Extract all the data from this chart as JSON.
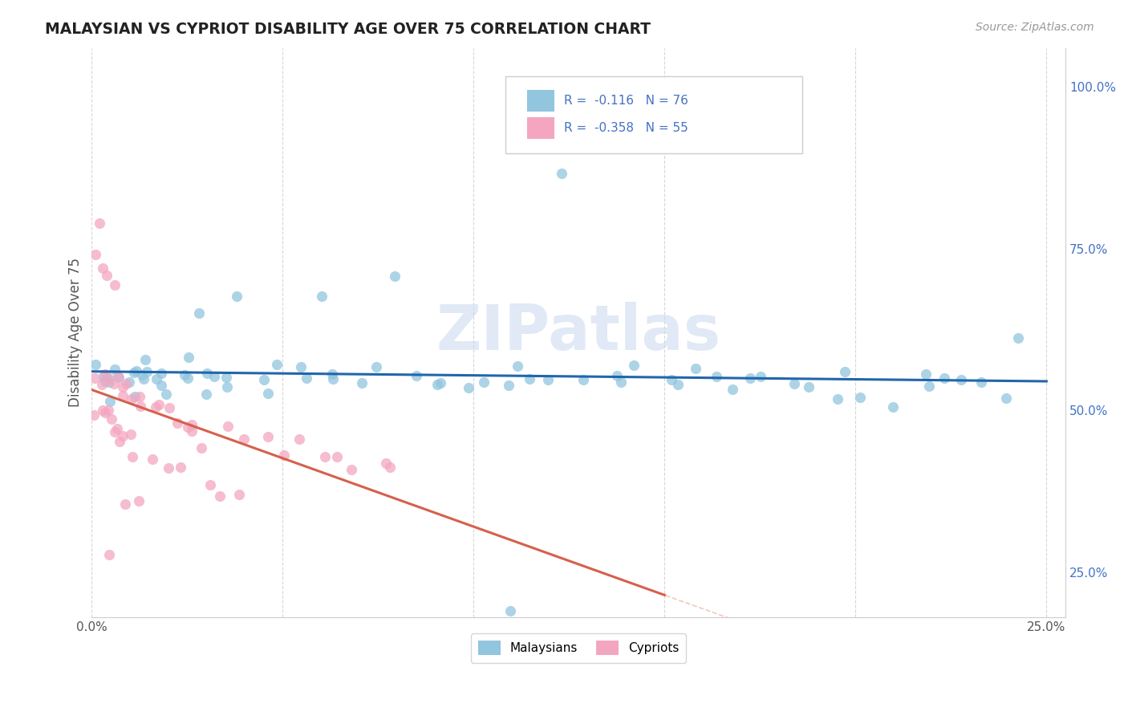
{
  "title": "MALAYSIAN VS CYPRIOT DISABILITY AGE OVER 75 CORRELATION CHART",
  "source": "Source: ZipAtlas.com",
  "ylabel": "Disability Age Over 75",
  "xlim": [
    0.0,
    0.255
  ],
  "ylim": [
    0.18,
    1.06
  ],
  "r_malaysian": -0.116,
  "n_malaysian": 76,
  "r_cypriot": -0.358,
  "n_cypriot": 55,
  "blue_color": "#92c5de",
  "pink_color": "#f4a6c0",
  "blue_line_color": "#2166ac",
  "pink_line_color": "#d6604d",
  "watermark": "ZIPatlas",
  "legend_labels": [
    "Malaysians",
    "Cypriots"
  ],
  "grid_color": "#cccccc",
  "right_tick_color": "#4472c4",
  "malaysian_x": [
    0.001,
    0.002,
    0.003,
    0.004,
    0.005,
    0.006,
    0.007,
    0.008,
    0.009,
    0.01,
    0.011,
    0.012,
    0.013,
    0.014,
    0.015,
    0.016,
    0.017,
    0.018,
    0.019,
    0.02,
    0.022,
    0.024,
    0.026,
    0.028,
    0.03,
    0.033,
    0.036,
    0.04,
    0.043,
    0.047,
    0.05,
    0.054,
    0.058,
    0.062,
    0.067,
    0.072,
    0.077,
    0.082,
    0.087,
    0.092,
    0.097,
    0.103,
    0.108,
    0.113,
    0.118,
    0.123,
    0.128,
    0.133,
    0.138,
    0.143,
    0.148,
    0.153,
    0.158,
    0.163,
    0.168,
    0.173,
    0.178,
    0.183,
    0.188,
    0.193,
    0.198,
    0.205,
    0.21,
    0.215,
    0.22,
    0.225,
    0.23,
    0.235,
    0.24,
    0.245,
    0.12,
    0.08,
    0.06,
    0.035,
    0.025,
    0.11
  ],
  "malaysian_y": [
    0.545,
    0.56,
    0.555,
    0.54,
    0.535,
    0.55,
    0.545,
    0.558,
    0.562,
    0.53,
    0.548,
    0.542,
    0.555,
    0.538,
    0.552,
    0.545,
    0.558,
    0.54,
    0.535,
    0.55,
    0.548,
    0.542,
    0.555,
    0.56,
    0.538,
    0.552,
    0.545,
    0.558,
    0.54,
    0.535,
    0.55,
    0.548,
    0.542,
    0.555,
    0.56,
    0.538,
    0.552,
    0.545,
    0.558,
    0.54,
    0.535,
    0.55,
    0.548,
    0.542,
    0.555,
    0.56,
    0.538,
    0.552,
    0.545,
    0.558,
    0.54,
    0.535,
    0.55,
    0.548,
    0.542,
    0.555,
    0.56,
    0.538,
    0.552,
    0.545,
    0.558,
    0.54,
    0.535,
    0.55,
    0.548,
    0.542,
    0.555,
    0.56,
    0.538,
    0.62,
    0.87,
    0.72,
    0.68,
    0.7,
    0.65,
    0.21
  ],
  "cypriot_x": [
    0.001,
    0.002,
    0.003,
    0.004,
    0.005,
    0.006,
    0.007,
    0.008,
    0.009,
    0.01,
    0.001,
    0.002,
    0.003,
    0.004,
    0.005,
    0.006,
    0.007,
    0.008,
    0.009,
    0.01,
    0.001,
    0.002,
    0.003,
    0.004,
    0.005,
    0.012,
    0.014,
    0.016,
    0.018,
    0.02,
    0.022,
    0.024,
    0.026,
    0.028,
    0.03,
    0.035,
    0.04,
    0.045,
    0.05,
    0.055,
    0.06,
    0.065,
    0.07,
    0.075,
    0.08,
    0.01,
    0.015,
    0.02,
    0.025,
    0.03,
    0.035,
    0.04,
    0.005,
    0.008,
    0.012
  ],
  "cypriot_y": [
    0.54,
    0.545,
    0.55,
    0.555,
    0.56,
    0.545,
    0.54,
    0.535,
    0.53,
    0.525,
    0.5,
    0.495,
    0.49,
    0.485,
    0.48,
    0.475,
    0.47,
    0.465,
    0.46,
    0.455,
    0.75,
    0.72,
    0.78,
    0.71,
    0.7,
    0.51,
    0.505,
    0.5,
    0.495,
    0.49,
    0.485,
    0.48,
    0.475,
    0.47,
    0.465,
    0.46,
    0.455,
    0.45,
    0.445,
    0.44,
    0.435,
    0.43,
    0.425,
    0.42,
    0.415,
    0.43,
    0.42,
    0.41,
    0.4,
    0.39,
    0.38,
    0.37,
    0.27,
    0.34,
    0.35
  ]
}
